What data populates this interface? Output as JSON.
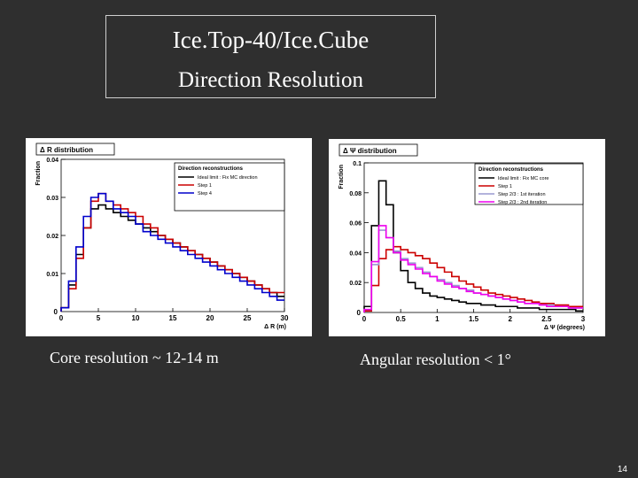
{
  "slide": {
    "title": "Ice.Top-40/Ice.Cube",
    "subtitle": "Direction Resolution",
    "caption_left": "Core resolution  ~ 12-14 m",
    "caption_right": "Angular resolution  < 1°",
    "page_number": "14"
  },
  "chart_data": [
    {
      "type": "line",
      "step": true,
      "title": "Δ R distribution",
      "xlabel": "Δ R (m)",
      "ylabel": "Fraction",
      "xlim": [
        0,
        30
      ],
      "ylim": [
        0,
        0.04
      ],
      "xticks": [
        0,
        5,
        10,
        15,
        20,
        25,
        30
      ],
      "yticks": [
        0.01,
        0.02,
        0.03,
        0.04
      ],
      "legend": {
        "title": "Direction reconstructions",
        "position": "top-right",
        "entries": [
          "Ideal limit : Fix MC direction",
          "Step 1",
          "Step 4"
        ]
      },
      "x": [
        0.5,
        1.5,
        2.5,
        3.5,
        4.5,
        5.5,
        6.5,
        7.5,
        8.5,
        9.5,
        10.5,
        11.5,
        12.5,
        13.5,
        14.5,
        15.5,
        16.5,
        17.5,
        18.5,
        19.5,
        20.5,
        21.5,
        22.5,
        23.5,
        24.5,
        25.5,
        26.5,
        27.5,
        28.5,
        29.5
      ],
      "series": [
        {
          "name": "Ideal limit : Fix MC direction",
          "color": "#000000",
          "values": [
            0.001,
            0.007,
            0.015,
            0.022,
            0.027,
            0.028,
            0.027,
            0.026,
            0.025,
            0.024,
            0.023,
            0.022,
            0.021,
            0.02,
            0.019,
            0.018,
            0.017,
            0.016,
            0.015,
            0.014,
            0.013,
            0.012,
            0.011,
            0.01,
            0.009,
            0.008,
            0.007,
            0.006,
            0.005,
            0.004
          ]
        },
        {
          "name": "Step 1",
          "color": "#cc0000",
          "values": [
            0.001,
            0.006,
            0.014,
            0.022,
            0.029,
            0.031,
            0.029,
            0.028,
            0.027,
            0.026,
            0.025,
            0.023,
            0.022,
            0.02,
            0.019,
            0.018,
            0.017,
            0.016,
            0.015,
            0.014,
            0.013,
            0.012,
            0.011,
            0.01,
            0.009,
            0.008,
            0.007,
            0.006,
            0.005,
            0.005
          ]
        },
        {
          "name": "Step 4",
          "color": "#0000cc",
          "values": [
            0.001,
            0.008,
            0.017,
            0.025,
            0.03,
            0.031,
            0.029,
            0.027,
            0.026,
            0.025,
            0.023,
            0.021,
            0.02,
            0.019,
            0.018,
            0.017,
            0.016,
            0.015,
            0.014,
            0.013,
            0.012,
            0.011,
            0.01,
            0.009,
            0.008,
            0.007,
            0.006,
            0.005,
            0.004,
            0.003
          ]
        }
      ]
    },
    {
      "type": "line",
      "step": true,
      "title": "Δ Ψ distribution",
      "xlabel": "Δ Ψ (degrees)",
      "ylabel": "Fraction",
      "xlim": [
        0,
        3
      ],
      "ylim": [
        0,
        0.1
      ],
      "xticks": [
        0,
        0.5,
        1,
        1.5,
        2,
        2.5,
        3
      ],
      "yticks": [
        0.02,
        0.04,
        0.06,
        0.08,
        0.1
      ],
      "legend": {
        "title": "Direction reconstructions",
        "position": "top-right",
        "entries": [
          "Ideal limit : Fix MC core",
          "Step 1",
          "Step 2/3 : 1st iteration",
          "Step 2/3 : 2nd iteration"
        ]
      },
      "x": [
        0.05,
        0.15,
        0.25,
        0.35,
        0.45,
        0.55,
        0.65,
        0.75,
        0.85,
        0.95,
        1.05,
        1.15,
        1.25,
        1.35,
        1.45,
        1.55,
        1.65,
        1.75,
        1.85,
        1.95,
        2.05,
        2.15,
        2.25,
        2.35,
        2.45,
        2.55,
        2.65,
        2.75,
        2.85,
        2.95
      ],
      "series": [
        {
          "name": "Ideal limit : Fix MC core",
          "color": "#000000",
          "values": [
            0.004,
            0.058,
            0.088,
            0.072,
            0.04,
            0.028,
            0.02,
            0.016,
            0.013,
            0.011,
            0.01,
            0.009,
            0.008,
            0.007,
            0.006,
            0.006,
            0.005,
            0.005,
            0.004,
            0.004,
            0.004,
            0.003,
            0.003,
            0.003,
            0.002,
            0.002,
            0.002,
            0.002,
            0.002,
            0.001
          ]
        },
        {
          "name": "Step 1",
          "color": "#cc0000",
          "values": [
            0.001,
            0.018,
            0.036,
            0.042,
            0.044,
            0.042,
            0.04,
            0.038,
            0.036,
            0.033,
            0.03,
            0.027,
            0.024,
            0.021,
            0.019,
            0.017,
            0.015,
            0.013,
            0.012,
            0.011,
            0.01,
            0.009,
            0.008,
            0.007,
            0.006,
            0.006,
            0.005,
            0.005,
            0.004,
            0.004
          ]
        },
        {
          "name": "Step 2/3 : 1st iteration",
          "color": "#9a9ad0",
          "values": [
            0.002,
            0.032,
            0.055,
            0.05,
            0.041,
            0.036,
            0.033,
            0.03,
            0.027,
            0.024,
            0.022,
            0.02,
            0.018,
            0.016,
            0.015,
            0.013,
            0.012,
            0.011,
            0.01,
            0.009,
            0.008,
            0.007,
            0.006,
            0.006,
            0.005,
            0.005,
            0.004,
            0.004,
            0.003,
            0.003
          ]
        },
        {
          "name": "Step 2/3 : 2nd iteration",
          "color": "#ee00ee",
          "values": [
            0.002,
            0.034,
            0.058,
            0.05,
            0.04,
            0.035,
            0.032,
            0.029,
            0.026,
            0.024,
            0.021,
            0.019,
            0.017,
            0.016,
            0.014,
            0.013,
            0.012,
            0.011,
            0.01,
            0.009,
            0.008,
            0.007,
            0.006,
            0.006,
            0.005,
            0.004,
            0.004,
            0.004,
            0.003,
            0.003
          ]
        }
      ]
    }
  ]
}
